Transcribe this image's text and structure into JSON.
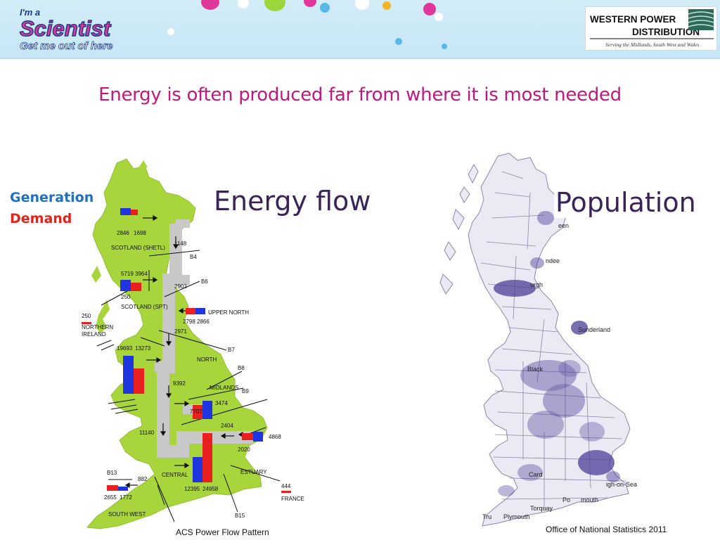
{
  "banner": {
    "logo_left": {
      "line1": "I'm a",
      "line2": "Scientist",
      "line3": "Get me out of here"
    },
    "logo_right": {
      "line1": "WESTERN POWER",
      "line2": "DISTRIBUTION",
      "tagline": "Serving the Midlands, South West and Wales"
    }
  },
  "title": "Energy is often produced far from where it is most needed",
  "legend": {
    "generation": "Generation",
    "demand": "Demand"
  },
  "colors": {
    "generation": "#1f35e0",
    "demand": "#e82020",
    "land": "#a8d43c",
    "flow": "#c8c8c8",
    "title": "#c0187e",
    "heading": "#3a2358"
  },
  "energy_flow": {
    "heading": "Energy flow",
    "caption": "ACS Power Flow Pattern",
    "zones": [
      {
        "name": "SCOTLAND (SHETL)",
        "generation": "2846",
        "demand": "1698"
      },
      {
        "name": "SCOTLAND (SPT)",
        "generation": "5719",
        "demand": "3964"
      },
      {
        "name": "UPPER NORTH",
        "generation": "2798",
        "demand": "2866"
      },
      {
        "name": "NORTH",
        "generation": "19693",
        "demand": "13273"
      },
      {
        "name": "MIDLANDS",
        "generation": "3474",
        "demand": "7707"
      },
      {
        "name": "CENTRAL",
        "generation": "12395",
        "demand": "24958"
      },
      {
        "name": "ESTUARY",
        "generation": "4868",
        "demand": ""
      },
      {
        "name": "SOUTH WEST",
        "generation": "2655",
        "demand": "1772"
      }
    ],
    "labels": {
      "b4": "B4",
      "b6": "B6",
      "b7": "B7",
      "b8": "B8",
      "b9": "B9",
      "b13": "B13",
      "b15": "B15",
      "f1148": "1148",
      "f2903": "2903",
      "f250": "250",
      "f2971": "2971",
      "f9392": "9392",
      "f11140": "11140",
      "f2404": "2404",
      "f2020": "2020",
      "f882": "882",
      "ni_value": "250",
      "ni_name1": "NORTHERN",
      "ni_name2": "IRELAND",
      "fr_value": "444",
      "fr_name": "FRANCE"
    }
  },
  "population": {
    "heading": "Population",
    "caption": "Office of National Statistics 2011",
    "places": [
      "een",
      "ndee",
      "urgh",
      "Sunderland",
      "Black",
      "Card",
      "igh-on-Sea",
      "Torquay",
      "Plymouth",
      "Po",
      "mouth",
      "Tru"
    ]
  }
}
